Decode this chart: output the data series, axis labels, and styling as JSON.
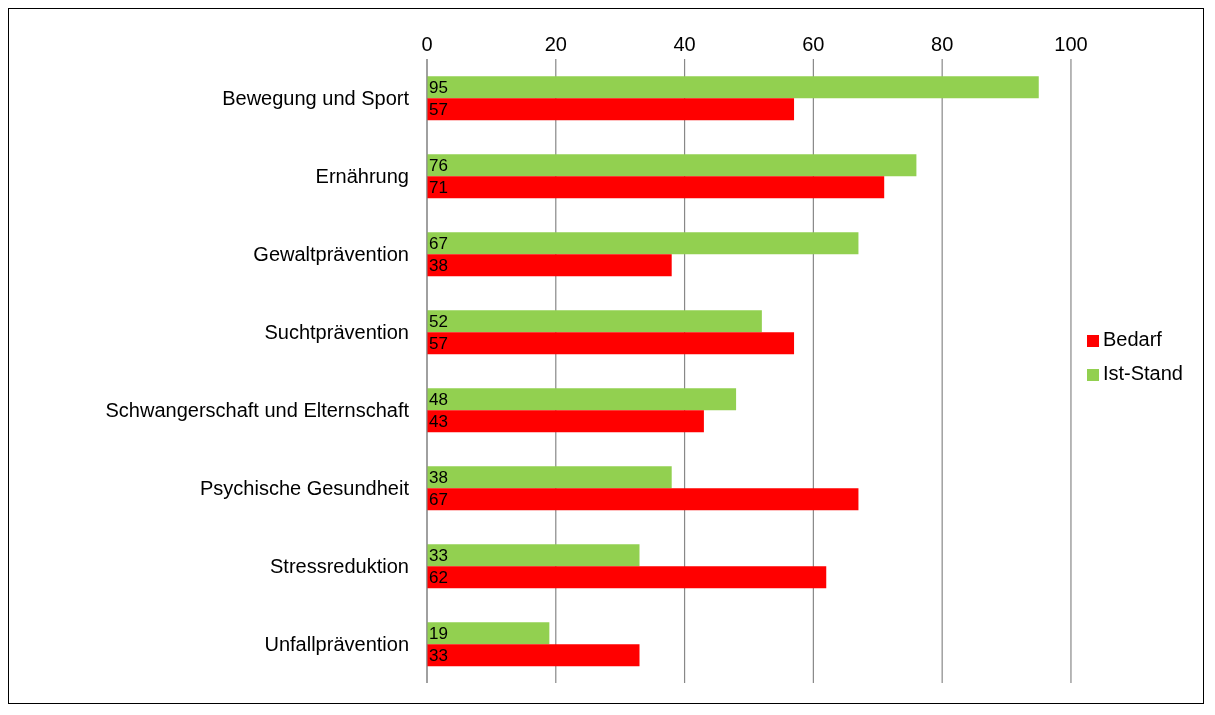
{
  "chart_data": {
    "type": "bar",
    "orientation": "horizontal",
    "categories": [
      "Bewegung und Sport",
      "Ernährung",
      "Gewaltprävention",
      "Suchtprävention",
      "Schwangerschaft und Elternschaft",
      "Psychische Gesundheit",
      "Stressreduktion",
      "Unfallprävention"
    ],
    "series": [
      {
        "name": "Ist-Stand",
        "color": "#92d050",
        "values": [
          95,
          76,
          67,
          52,
          48,
          38,
          33,
          19
        ]
      },
      {
        "name": "Bedarf",
        "color": "#ff0000",
        "values": [
          57,
          71,
          38,
          57,
          43,
          67,
          62,
          33
        ]
      }
    ],
    "xlim": [
      0,
      100
    ],
    "xticks": [
      0,
      20,
      40,
      60,
      80,
      100
    ],
    "grid": "x",
    "legend": "right",
    "data_labels": true
  }
}
